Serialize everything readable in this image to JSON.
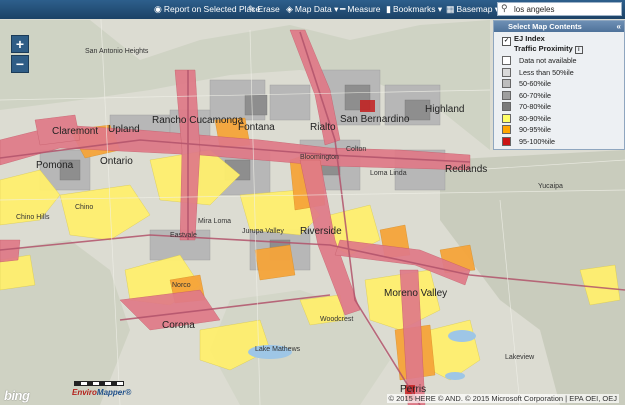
{
  "toolbar": {
    "items": [
      {
        "icon": "report-icon",
        "glyph": "◉",
        "label": "Report on Selected Place"
      },
      {
        "icon": "erase-icon",
        "glyph": "✎",
        "label": "Erase"
      },
      {
        "icon": "map-data-icon",
        "glyph": "◈",
        "label": "Map Data ▾"
      },
      {
        "icon": "measure-icon",
        "glyph": "━",
        "label": "Measure"
      },
      {
        "icon": "bookmarks-icon",
        "glyph": "▮",
        "label": "Bookmarks ▾"
      },
      {
        "icon": "basemap-icon",
        "glyph": "▦",
        "label": "Basemap ▾"
      }
    ],
    "search_value": "los angeles"
  },
  "zoom": {
    "in": "+",
    "out": "−"
  },
  "panel": {
    "title": "Select Map Contents",
    "close": "«",
    "layer": "EJ Index",
    "sublayer": "Traffic Proximity",
    "legend": [
      {
        "label": "Data not available",
        "color": "#ffffff"
      },
      {
        "label": "Less than 50%ile",
        "color": "#d9d9d9"
      },
      {
        "label": "50-60%ile",
        "color": "#bdbdbd"
      },
      {
        "label": "60-70%ile",
        "color": "#9e9e9e"
      },
      {
        "label": "70-80%ile",
        "color": "#7a7a7a"
      },
      {
        "label": "80-90%ile",
        "color": "#ffff66"
      },
      {
        "label": "90-95%ile",
        "color": "#ffa500"
      },
      {
        "label": "95-100%ile",
        "color": "#cc1414"
      }
    ]
  },
  "places": [
    "San Antonio Heights",
    "Upland",
    "Claremont",
    "Rancho Cucamonga",
    "Fontana",
    "Rialto",
    "San Bernardino",
    "Highland",
    "Pomona",
    "Ontario",
    "Bloomington",
    "Colton",
    "Loma Linda",
    "Redlands",
    "Chino",
    "Mira Loma",
    "Jurupa Valley",
    "Eastvale",
    "Riverside",
    "Chino Hills",
    "Norco",
    "Corona",
    "Moreno Valley",
    "Lake Mathews",
    "Woodcrest",
    "Lakeview",
    "Yucaipa",
    "Perris"
  ],
  "attribution": "© 2015 HERE © AND. © 2015 Microsoft Corporation | EPA OEI, OEJ",
  "bing": "bing",
  "logo": {
    "a": "Enviro",
    "b": "Mapper®"
  }
}
